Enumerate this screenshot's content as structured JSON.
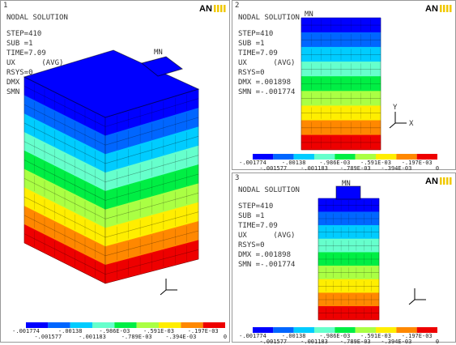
{
  "panels": [
    {
      "number": "1",
      "marker": "MN"
    },
    {
      "number": "2",
      "marker": "MN",
      "triad": [
        "Y",
        "X"
      ]
    },
    {
      "number": "3",
      "marker": "MN"
    }
  ],
  "header": "NODAL SOLUTION",
  "info": [
    "STEP=410",
    "SUB =1",
    "TIME=7.09",
    "UX      (AVG)",
    "RSYS=0",
    "DMX =.001898",
    "SMN =-.001774"
  ],
  "logo": "AN",
  "legend": {
    "colors": [
      "#0000ff",
      "#0066ff",
      "#00ccff",
      "#66ffcc",
      "#00ee44",
      "#aaff44",
      "#ffee00",
      "#ff8800",
      "#ee0000"
    ],
    "top": [
      "-.001774",
      "-.00138",
      "-.986E-03",
      "-.591E-03",
      "-.197E-03"
    ],
    "bottom": [
      "-.001577",
      "-.001183",
      "-.789E-03",
      "-.394E-03",
      "0"
    ]
  }
}
